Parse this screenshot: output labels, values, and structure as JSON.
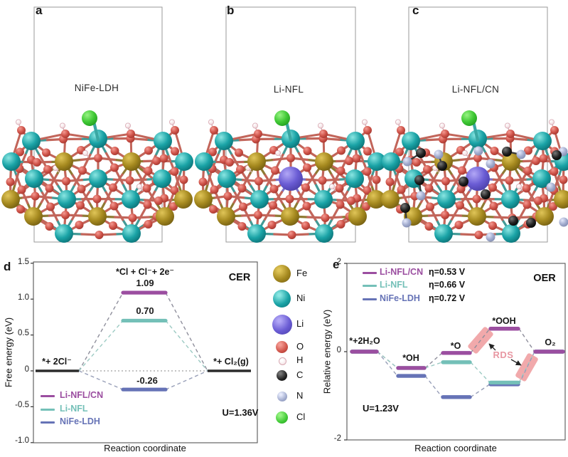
{
  "figure": {
    "panels_top": [
      {
        "letter": "a",
        "label": "NiFe-LDH"
      },
      {
        "letter": "b",
        "label": "Li-NFL"
      },
      {
        "letter": "c",
        "label": "Li-NFL/CN"
      }
    ],
    "atom_legend": [
      {
        "symbol": "Fe",
        "color": "#a5891f"
      },
      {
        "symbol": "Ni",
        "color": "#1aa3a6"
      },
      {
        "symbol": "Li",
        "color": "#6a5cd4"
      },
      {
        "symbol": "O",
        "color": "#cf5349"
      },
      {
        "symbol": "H",
        "color": "#f6e8ea"
      },
      {
        "symbol": "C",
        "color": "#232323"
      },
      {
        "symbol": "N",
        "color": "#a3adcf"
      },
      {
        "symbol": "Cl",
        "color": "#41c936"
      }
    ]
  },
  "chart_data": [
    {
      "type": "line",
      "panel": "d",
      "title": "CER",
      "xlabel": "Reaction coordinate",
      "ylabel": "Free energy (eV)",
      "ylim": [
        -1.0,
        1.5
      ],
      "yticks": [
        1.5,
        1.0,
        0.5,
        0,
        -0.5,
        -1.0
      ],
      "ytick_labels": [
        "1.5",
        "1.0",
        "0.5",
        "0",
        "-0.5",
        "-1.0"
      ],
      "grid": false,
      "legend_position": "bottom-left",
      "states": [
        "*+ 2Cl⁻",
        "*Cl + Cl⁻+ 2e⁻",
        "*+ Cl₂(g)"
      ],
      "series": [
        {
          "name": "Li-NFL/CN",
          "color": "#9b4ea0",
          "values": [
            0,
            1.09,
            0
          ],
          "value_label": "1.09"
        },
        {
          "name": "Li-NFL",
          "color": "#74c0b8",
          "values": [
            0,
            0.7,
            0
          ],
          "value_label": "0.70"
        },
        {
          "name": "NiFe-LDH",
          "color": "#6673b6",
          "values": [
            0,
            -0.26,
            0
          ],
          "value_label": "-0.26"
        }
      ],
      "potential": "U=1.36V"
    },
    {
      "type": "line",
      "panel": "e",
      "title": "OER",
      "xlabel": "Reaction coordinate",
      "ylabel": "Relative energy (eV)",
      "ylim": [
        -2,
        2
      ],
      "yticks": [
        2,
        0,
        -2
      ],
      "ytick_labels": [
        "2",
        "0",
        "-2"
      ],
      "grid": false,
      "legend_position": "top-left",
      "states": [
        "*+2H₂O",
        "*OH",
        "*O",
        "*OOH",
        "O₂"
      ],
      "series": [
        {
          "name": "Li-NFL/CN",
          "overpotential": "η=0.53 V",
          "color": "#9b4ea0",
          "values": [
            0,
            -0.37,
            -0.03,
            0.52,
            0
          ]
        },
        {
          "name": "Li-NFL",
          "overpotential": "η=0.66 V",
          "color": "#74c0b8",
          "values": [
            0,
            -0.37,
            -0.24,
            -0.7,
            0
          ]
        },
        {
          "name": "NiFe-LDH",
          "overpotential": "η=0.72 V",
          "color": "#6673b6",
          "values": [
            0,
            -0.55,
            -1.03,
            -0.74,
            0
          ]
        }
      ],
      "rds_label": "RDS",
      "potential": "U=1.23V"
    }
  ]
}
